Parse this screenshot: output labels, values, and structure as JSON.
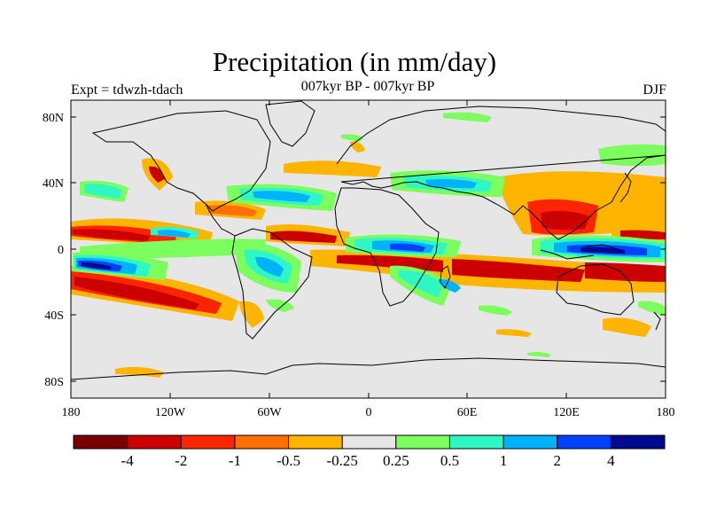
{
  "title": "Precipitation (in mm/day)",
  "left_label": "Expt = tdwzh-tdach",
  "center_label": "007kyr BP - 007kyr BP",
  "right_label": "DJF",
  "lat_ticks": [
    "80N",
    "40N",
    "0",
    "40S",
    "80S"
  ],
  "lon_ticks": [
    "180",
    "120W",
    "60W",
    "0",
    "60E",
    "120E",
    "180"
  ],
  "colorbar": {
    "colors": [
      "#7a0000",
      "#cc0000",
      "#ff2400",
      "#ff7000",
      "#ffb400",
      "#e6e6e6",
      "#7cff5e",
      "#2ef7c4",
      "#00b2ff",
      "#0040ff",
      "#000a8c"
    ],
    "labels": [
      "-4",
      "-2",
      "-1",
      "-0.5",
      "-0.25",
      "0.25",
      "0.5",
      "1",
      "2",
      "4"
    ]
  },
  "map_colors": {
    "ocean_land_background": "#e6e6e6",
    "coastline": "#000000"
  }
}
